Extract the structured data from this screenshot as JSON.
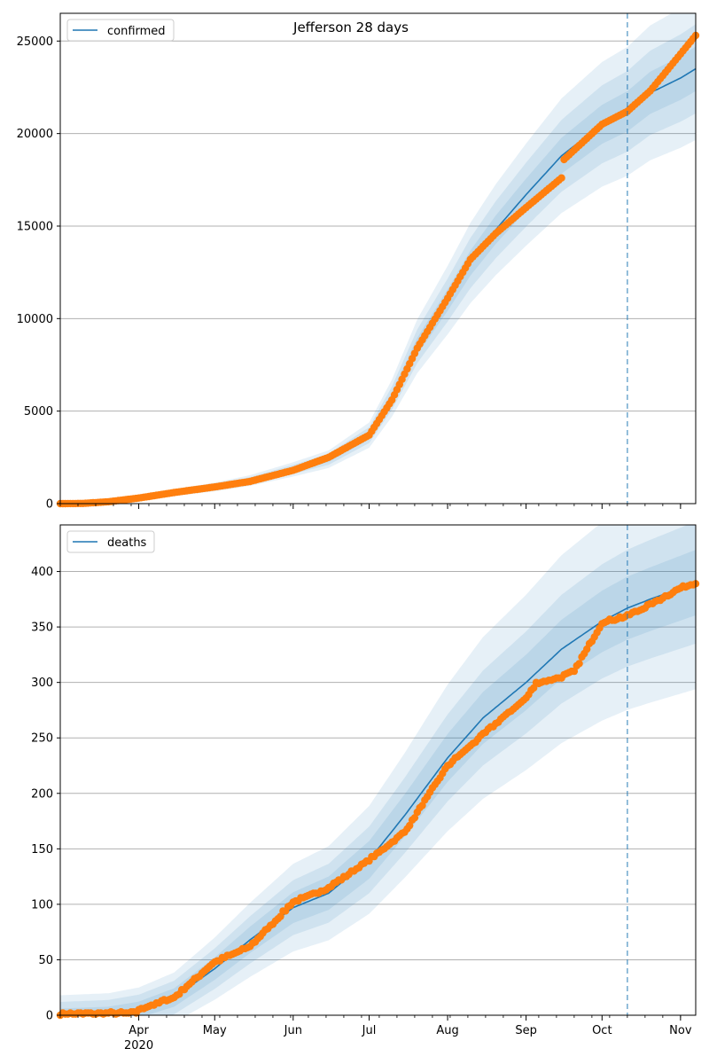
{
  "title": "Jefferson 28 days",
  "colors": {
    "model": "#1f77b4",
    "observed": "#ff7f0e",
    "band": "#1f77b4",
    "grid": "#b0b0b0",
    "forecast_line": "#1f77b4"
  },
  "x_axis": {
    "start": "2020-03-01",
    "end": "2020-11-07",
    "month_ticks": [
      {
        "date": "2020-04-01",
        "label": "Apr"
      },
      {
        "date": "2020-05-01",
        "label": "May"
      },
      {
        "date": "2020-06-01",
        "label": "Jun"
      },
      {
        "date": "2020-07-01",
        "label": "Jul"
      },
      {
        "date": "2020-08-01",
        "label": "Aug"
      },
      {
        "date": "2020-09-01",
        "label": "Sep"
      },
      {
        "date": "2020-10-01",
        "label": "Oct"
      },
      {
        "date": "2020-11-01",
        "label": "Nov"
      }
    ],
    "year_label": "2020",
    "forecast_start": "2020-10-11"
  },
  "chart_data": [
    {
      "type": "line",
      "legend": "confirmed",
      "legend_position": "top-left",
      "ylim": [
        0,
        26500
      ],
      "yticks": [
        0,
        5000,
        10000,
        15000,
        20000,
        25000
      ],
      "grid": "horizontal",
      "model_curve": [
        [
          "2020-03-01",
          0
        ],
        [
          "2020-03-10",
          10
        ],
        [
          "2020-03-20",
          100
        ],
        [
          "2020-04-01",
          300
        ],
        [
          "2020-04-15",
          600
        ],
        [
          "2020-05-01",
          900
        ],
        [
          "2020-05-15",
          1250
        ],
        [
          "2020-06-01",
          1850
        ],
        [
          "2020-06-15",
          2400
        ],
        [
          "2020-07-01",
          3700
        ],
        [
          "2020-07-10",
          5700
        ],
        [
          "2020-07-20",
          8500
        ],
        [
          "2020-08-01",
          11000
        ],
        [
          "2020-08-10",
          13000
        ],
        [
          "2020-08-20",
          14800
        ],
        [
          "2020-09-01",
          16700
        ],
        [
          "2020-09-15",
          18800
        ],
        [
          "2020-10-01",
          20500
        ],
        [
          "2020-10-11",
          21200
        ],
        [
          "2020-10-20",
          22200
        ],
        [
          "2020-11-01",
          23000
        ],
        [
          "2020-11-07",
          23500
        ]
      ],
      "bands_total_halfwidth_frac": [
        0.05,
        0.1,
        0.16
      ],
      "observed": [
        [
          "2020-03-01",
          0
        ],
        [
          "2020-03-10",
          10
        ],
        [
          "2020-03-20",
          100
        ],
        [
          "2020-04-01",
          300
        ],
        [
          "2020-04-15",
          600
        ],
        [
          "2020-05-01",
          900
        ],
        [
          "2020-05-15",
          1200
        ],
        [
          "2020-06-01",
          1800
        ],
        [
          "2020-06-15",
          2500
        ],
        [
          "2020-07-01",
          3700
        ],
        [
          "2020-07-10",
          5600
        ],
        [
          "2020-07-20",
          8400
        ],
        [
          "2020-08-01",
          11100
        ],
        [
          "2020-08-10",
          13200
        ],
        [
          "2020-08-20",
          14600
        ],
        [
          "2020-09-01",
          16000
        ],
        [
          "2020-09-15",
          17600
        ],
        [
          "2020-09-16",
          18600
        ],
        [
          "2020-10-01",
          20500
        ],
        [
          "2020-10-11",
          21200
        ],
        [
          "2020-10-20",
          22300
        ],
        [
          "2020-11-01",
          24300
        ],
        [
          "2020-11-07",
          25300
        ]
      ]
    },
    {
      "type": "line",
      "legend": "deaths",
      "legend_position": "top-left",
      "ylim": [
        0,
        442
      ],
      "yticks": [
        0,
        50,
        100,
        150,
        200,
        250,
        300,
        350,
        400
      ],
      "grid": "horizontal",
      "model_curve": [
        [
          "2020-03-01",
          0
        ],
        [
          "2020-03-20",
          1
        ],
        [
          "2020-04-01",
          5
        ],
        [
          "2020-04-15",
          16
        ],
        [
          "2020-05-01",
          42
        ],
        [
          "2020-05-15",
          68
        ],
        [
          "2020-06-01",
          97
        ],
        [
          "2020-06-15",
          110
        ],
        [
          "2020-07-01",
          140
        ],
        [
          "2020-07-15",
          180
        ],
        [
          "2020-08-01",
          232
        ],
        [
          "2020-08-15",
          268
        ],
        [
          "2020-09-01",
          300
        ],
        [
          "2020-09-15",
          330
        ],
        [
          "2020-10-01",
          355
        ],
        [
          "2020-10-11",
          367
        ],
        [
          "2020-10-20",
          375
        ],
        [
          "2020-11-01",
          385
        ],
        [
          "2020-11-07",
          390
        ]
      ],
      "bands_total_halfwidth_frac": [
        0.05,
        0.1,
        0.19
      ],
      "observed": [
        [
          "2020-03-01",
          1
        ],
        [
          "2020-03-31",
          2
        ],
        [
          "2020-04-01",
          5
        ],
        [
          "2020-04-15",
          16
        ],
        [
          "2020-05-01",
          48
        ],
        [
          "2020-05-15",
          62
        ],
        [
          "2020-06-01",
          102
        ],
        [
          "2020-06-15",
          115
        ],
        [
          "2020-07-01",
          140
        ],
        [
          "2020-07-15",
          165
        ],
        [
          "2020-08-01",
          225
        ],
        [
          "2020-08-10",
          243
        ],
        [
          "2020-08-20",
          263
        ],
        [
          "2020-09-01",
          286
        ],
        [
          "2020-09-05",
          299
        ],
        [
          "2020-09-15",
          305
        ],
        [
          "2020-09-20",
          310
        ],
        [
          "2020-10-01",
          354
        ],
        [
          "2020-10-11",
          360
        ],
        [
          "2020-10-20",
          370
        ],
        [
          "2020-11-01",
          385
        ],
        [
          "2020-11-07",
          390
        ]
      ]
    }
  ]
}
